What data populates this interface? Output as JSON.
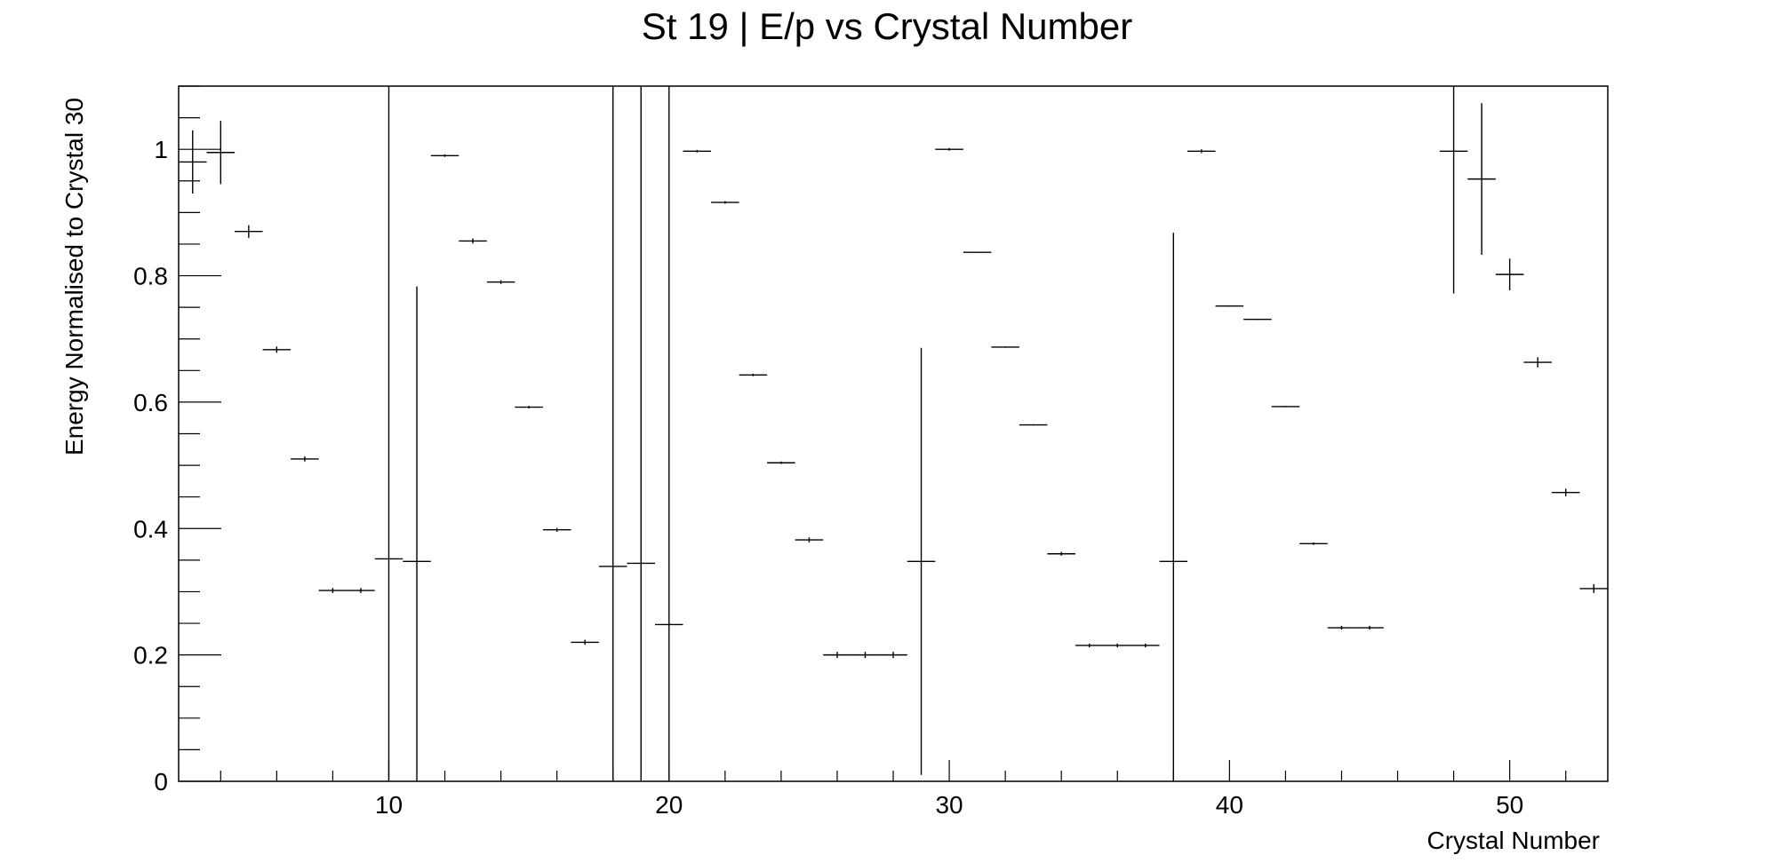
{
  "chart_data": {
    "type": "scatter",
    "title": "St 19 | E/p vs Crystal Number",
    "xlabel": "Crystal Number",
    "ylabel": "Energy Normalised to Crystal 30",
    "xlim": [
      2.5,
      53.5
    ],
    "ylim": [
      0,
      1.1
    ],
    "x_ticks": [
      10,
      20,
      30,
      40,
      50
    ],
    "y_ticks": [
      0,
      0.2,
      0.4,
      0.6,
      0.8,
      1
    ],
    "grid": false,
    "legend": "none",
    "series": [
      {
        "points": [
          {
            "x": 3,
            "y": 0.98,
            "err": 0.05
          },
          {
            "x": 4,
            "y": 0.995,
            "err": 0.05
          },
          {
            "x": 5,
            "y": 0.87,
            "err": 0.01
          },
          {
            "x": 6,
            "y": 0.683,
            "err": 0.005
          },
          {
            "x": 7,
            "y": 0.51,
            "err": 0.004
          },
          {
            "x": 8,
            "y": 0.302,
            "err": 0.004
          },
          {
            "x": 9,
            "y": 0.302,
            "err": 0.004
          },
          {
            "x": 10,
            "y": 0.352,
            "err": 1.0
          },
          {
            "x": 11,
            "y": 0.348,
            "err": 0.435
          },
          {
            "x": 12,
            "y": 0.99,
            "err": 0.002
          },
          {
            "x": 13,
            "y": 0.855,
            "err": 0.004
          },
          {
            "x": 14,
            "y": 0.79,
            "err": 0.003
          },
          {
            "x": 15,
            "y": 0.592,
            "err": 0.002
          },
          {
            "x": 16,
            "y": 0.398,
            "err": 0.003
          },
          {
            "x": 17,
            "y": 0.22,
            "err": 0.004
          },
          {
            "x": 18,
            "y": 0.34,
            "err": 1.0
          },
          {
            "x": 19,
            "y": 0.345,
            "err": 1.0
          },
          {
            "x": 20,
            "y": 0.248,
            "err": 1.0
          },
          {
            "x": 21,
            "y": 0.997,
            "err": 0.002
          },
          {
            "x": 22,
            "y": 0.916,
            "err": 0.002
          },
          {
            "x": 23,
            "y": 0.643,
            "err": 0.002
          },
          {
            "x": 24,
            "y": 0.504,
            "err": 0.002
          },
          {
            "x": 25,
            "y": 0.382,
            "err": 0.004
          },
          {
            "x": 26,
            "y": 0.2,
            "err": 0.005
          },
          {
            "x": 27,
            "y": 0.2,
            "err": 0.005
          },
          {
            "x": 28,
            "y": 0.2,
            "err": 0.005
          },
          {
            "x": 29,
            "y": 0.348,
            "err": 0.338
          },
          {
            "x": 30,
            "y": 1.0,
            "err": 0.002
          },
          {
            "x": 31,
            "y": 0.837,
            "err": 0.001
          },
          {
            "x": 32,
            "y": 0.687,
            "err": 0.001
          },
          {
            "x": 33,
            "y": 0.564,
            "err": 0.001
          },
          {
            "x": 34,
            "y": 0.36,
            "err": 0.003
          },
          {
            "x": 35,
            "y": 0.215,
            "err": 0.003
          },
          {
            "x": 36,
            "y": 0.215,
            "err": 0.003
          },
          {
            "x": 37,
            "y": 0.215,
            "err": 0.003
          },
          {
            "x": 38,
            "y": 0.348,
            "err": 0.52
          },
          {
            "x": 39,
            "y": 0.997,
            "err": 0.003
          },
          {
            "x": 40,
            "y": 0.752,
            "err": 0.001
          },
          {
            "x": 41,
            "y": 0.731,
            "err": 0.001
          },
          {
            "x": 42,
            "y": 0.593,
            "err": 0.001
          },
          {
            "x": 43,
            "y": 0.376,
            "err": 0.002
          },
          {
            "x": 44,
            "y": 0.243,
            "err": 0.003
          },
          {
            "x": 45,
            "y": 0.243,
            "err": 0.003
          },
          {
            "x": 48,
            "y": 0.997,
            "err": 0.225
          },
          {
            "x": 49,
            "y": 0.953,
            "err": 0.12
          },
          {
            "x": 50,
            "y": 0.802,
            "err": 0.025
          },
          {
            "x": 51,
            "y": 0.663,
            "err": 0.008
          },
          {
            "x": 52,
            "y": 0.457,
            "err": 0.006
          },
          {
            "x": 53,
            "y": 0.305,
            "err": 0.007
          }
        ]
      }
    ]
  }
}
